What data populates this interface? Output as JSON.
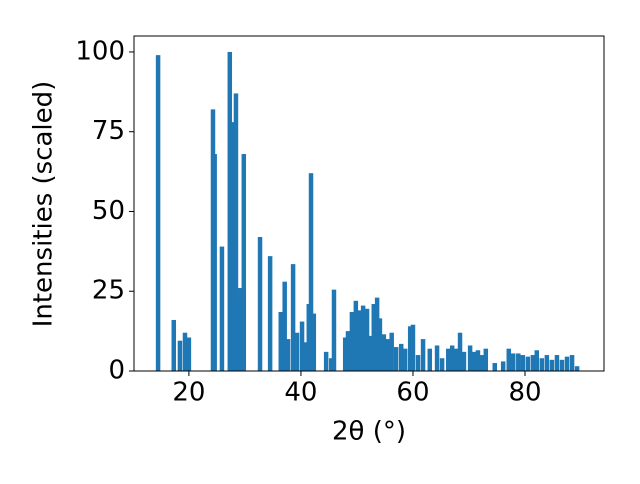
{
  "chart_data": {
    "type": "bar",
    "x_label": "2θ (°)",
    "y_label": "Intensities (scaled)",
    "color": "#1f77b4",
    "x": [
      14.5,
      17.3,
      18.4,
      19.3,
      20.0,
      24.3,
      24.6,
      25.9,
      27.3,
      27.9,
      28.4,
      29.1,
      29.8,
      32.7,
      34.5,
      36.4,
      37.1,
      37.7,
      38.6,
      39.3,
      40.2,
      40.7,
      41.4,
      41.8,
      42.3,
      44.5,
      45.4,
      45.9,
      47.9,
      48.4,
      49.1,
      49.8,
      50.5,
      51.1,
      51.8,
      52.3,
      53.0,
      53.6,
      54.1,
      54.8,
      55.5,
      56.2,
      57.0,
      57.9,
      58.6,
      59.5,
      60.0,
      60.9,
      61.8,
      63.0,
      64.3,
      65.2,
      66.3,
      67.0,
      67.7,
      68.4,
      69.1,
      70.2,
      70.9,
      71.6,
      72.3,
      73.0,
      74.6,
      76.1,
      77.1,
      77.9,
      78.8,
      79.6,
      80.5,
      81.4,
      82.1,
      83.0,
      83.9,
      84.8,
      85.7,
      86.6,
      87.5,
      88.4,
      89.3
    ],
    "values": [
      99,
      16,
      9.5,
      12,
      10.5,
      82,
      68,
      39,
      100,
      78,
      87,
      26,
      68,
      42,
      36,
      18.5,
      28,
      10,
      33.5,
      12,
      15.5,
      9,
      21,
      62,
      18,
      6,
      4,
      25.5,
      10.5,
      12.5,
      18.5,
      22,
      19,
      20.5,
      19.5,
      11,
      21,
      23,
      16.5,
      11.5,
      10,
      12,
      7.5,
      8.5,
      7,
      14,
      14.5,
      5,
      10,
      7,
      8,
      4,
      7,
      8,
      7,
      12,
      6,
      8,
      6,
      6.5,
      5,
      7,
      2.5,
      3,
      7,
      5.5,
      5.5,
      5,
      4.5,
      5,
      6.5,
      4,
      5,
      3.5,
      5,
      3.5,
      4.5,
      5,
      1.5
    ],
    "xlim": [
      10.2,
      94.1
    ],
    "ylim": [
      0,
      105
    ],
    "xticks": [
      20,
      40,
      60,
      80
    ],
    "yticks": [
      0,
      25,
      50,
      75,
      100
    ]
  }
}
